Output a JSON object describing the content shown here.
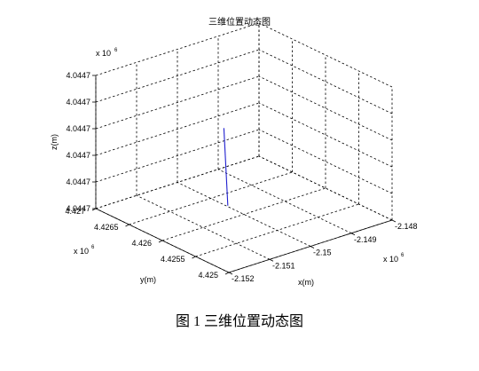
{
  "chart_data": {
    "type": "line",
    "title": "三维位置动态图",
    "xlabel": "x(m)",
    "ylabel": "y(m)",
    "zlabel": "z(m)",
    "x_multiplier": "x 10",
    "y_multiplier": "x 10",
    "z_multiplier": "x 10",
    "multiplier_exponent": "6",
    "x_ticks": [
      "-2.152",
      "-2.151",
      "-2.15",
      "-2.149",
      "-2.148"
    ],
    "y_ticks": [
      "4.425",
      "4.4255",
      "4.426",
      "4.4265",
      "4.427"
    ],
    "z_ticks": [
      "4.0447",
      "4.0447",
      "4.0447",
      "4.0447",
      "4.0447",
      "4.0447"
    ],
    "grid": true,
    "line_color": "#1f1fcf",
    "series": [
      {
        "x": [
          -2.15046,
          -2.1501
        ],
        "y": [
          4.42596,
          4.42624
        ],
        "z": [
          0.6,
          3.0
        ]
      }
    ]
  },
  "caption": "图 1  三维位置动态图"
}
